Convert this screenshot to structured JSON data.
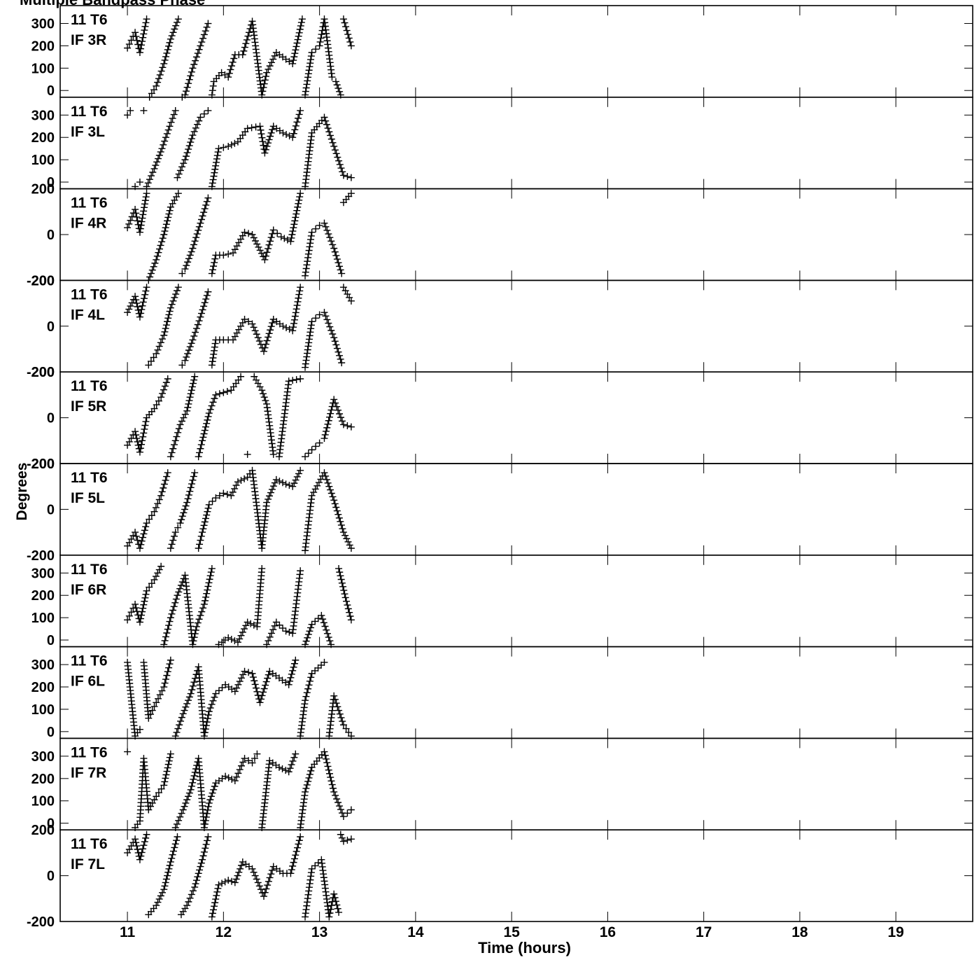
{
  "page_title": "Multiple Bandpass Phase",
  "chart_data": {
    "type": "scatter",
    "title": "",
    "xlabel": "Time (hours)",
    "ylabel": "Degrees",
    "xlim": [
      10.3,
      19.8
    ],
    "x_ticks": [
      11,
      12,
      13,
      14,
      15,
      16,
      17,
      18,
      19
    ],
    "marker": "+",
    "marker_color": "#000000",
    "grid": false,
    "panels": [
      {
        "line1": "11 T6",
        "line2": "IF 3R",
        "ylim": [
          -30,
          380
        ],
        "y_ticks": [
          0,
          100,
          200,
          300
        ],
        "x": [
          11.0,
          11.08,
          11.13,
          11.2,
          11.23,
          11.3,
          11.38,
          11.45,
          11.53,
          11.57,
          11.6,
          11.68,
          11.76,
          11.84,
          11.88,
          11.9,
          11.98,
          12.05,
          12.12,
          12.2,
          12.3,
          12.4,
          12.45,
          12.55,
          12.65,
          12.72,
          12.82,
          12.85,
          12.92,
          13.0,
          13.05,
          13.13,
          13.17,
          13.22,
          13.25,
          13.33
        ],
        "y": [
          190,
          260,
          170,
          320,
          -30,
          20,
          120,
          230,
          320,
          -30,
          -20,
          100,
          200,
          300,
          -20,
          40,
          80,
          60,
          160,
          160,
          310,
          -20,
          80,
          170,
          140,
          120,
          320,
          -20,
          170,
          200,
          320,
          60,
          40,
          -20,
          320,
          200
        ]
      },
      {
        "line1": "11 T6",
        "line2": "IF 3L",
        "ylim": [
          -30,
          380
        ],
        "y_ticks": [
          0,
          100,
          200,
          300
        ],
        "x": [
          11.0,
          11.03,
          11.08,
          11.13,
          11.17,
          11.2,
          11.28,
          11.36,
          11.44,
          11.5,
          11.52,
          11.6,
          11.68,
          11.76,
          11.84,
          11.88,
          11.95,
          12.05,
          12.15,
          12.25,
          12.38,
          12.43,
          12.52,
          12.62,
          12.72,
          12.8,
          12.85,
          12.92,
          13.05,
          13.15,
          13.25,
          13.33
        ],
        "y": [
          300,
          320,
          -20,
          0,
          320,
          -20,
          60,
          150,
          250,
          320,
          20,
          100,
          210,
          290,
          320,
          -20,
          150,
          160,
          180,
          240,
          250,
          130,
          250,
          220,
          200,
          320,
          -20,
          220,
          290,
          160,
          30,
          20
        ]
      },
      {
        "line1": "11 T6",
        "line2": "IF 4R",
        "ylim": [
          -200,
          200
        ],
        "y_ticks": [
          -200,
          0,
          200
        ],
        "x": [
          11.0,
          11.08,
          11.13,
          11.2,
          11.22,
          11.3,
          11.38,
          11.45,
          11.53,
          11.57,
          11.6,
          11.68,
          11.76,
          11.84,
          11.88,
          11.92,
          12.0,
          12.1,
          12.22,
          12.3,
          12.43,
          12.52,
          12.6,
          12.7,
          12.8,
          12.85,
          12.92,
          13.0,
          13.05,
          13.15,
          13.23,
          13.25,
          13.33
        ],
        "y": [
          30,
          110,
          10,
          180,
          -200,
          -110,
          0,
          120,
          180,
          -170,
          -150,
          -60,
          50,
          160,
          -170,
          -90,
          -90,
          -80,
          10,
          0,
          -110,
          20,
          -10,
          -30,
          180,
          -180,
          10,
          40,
          50,
          -60,
          -170,
          140,
          180
        ]
      },
      {
        "line1": "11 T6",
        "line2": "IF 4L",
        "ylim": [
          -200,
          200
        ],
        "y_ticks": [
          -200,
          0,
          200
        ],
        "x": [
          11.0,
          11.08,
          11.13,
          11.2,
          11.22,
          11.3,
          11.38,
          11.45,
          11.53,
          11.57,
          11.6,
          11.68,
          11.76,
          11.84,
          11.88,
          11.92,
          12.0,
          12.1,
          12.22,
          12.3,
          12.42,
          12.52,
          12.62,
          12.72,
          12.8,
          12.85,
          12.92,
          13.0,
          13.05,
          13.15,
          13.23,
          13.25,
          13.33
        ],
        "y": [
          60,
          130,
          40,
          170,
          -170,
          -120,
          -40,
          80,
          170,
          -170,
          -150,
          -60,
          40,
          150,
          -170,
          -60,
          -60,
          -60,
          30,
          10,
          -110,
          30,
          0,
          -20,
          170,
          -180,
          20,
          50,
          60,
          -50,
          -160,
          170,
          110
        ]
      },
      {
        "line1": "11 T6",
        "line2": "IF 5R",
        "ylim": [
          -200,
          200
        ],
        "y_ticks": [
          -200,
          0,
          200
        ],
        "x": [
          11.0,
          11.08,
          11.13,
          11.2,
          11.28,
          11.35,
          11.42,
          11.45,
          11.5,
          11.55,
          11.62,
          11.7,
          11.74,
          11.78,
          11.85,
          11.92,
          12.0,
          12.08,
          12.18,
          12.25,
          12.32,
          12.4,
          12.45,
          12.52,
          12.58,
          12.68,
          12.8,
          12.85,
          12.92,
          13.0,
          13.05,
          13.15,
          13.25,
          13.33
        ],
        "y": [
          -120,
          -60,
          -150,
          0,
          40,
          90,
          170,
          -170,
          -100,
          -30,
          30,
          180,
          -170,
          -100,
          20,
          100,
          110,
          120,
          180,
          -160,
          180,
          120,
          60,
          -160,
          -170,
          160,
          170,
          -170,
          -140,
          -110,
          -90,
          80,
          -30,
          -40
        ]
      },
      {
        "line1": "11 T6",
        "line2": "IF 5L",
        "ylim": [
          -200,
          200
        ],
        "y_ticks": [
          -200,
          0,
          200
        ],
        "x": [
          11.0,
          11.08,
          11.13,
          11.2,
          11.28,
          11.35,
          11.42,
          11.45,
          11.5,
          11.55,
          11.62,
          11.7,
          11.74,
          11.78,
          11.85,
          11.92,
          12.0,
          12.08,
          12.15,
          12.25,
          12.3,
          12.4,
          12.45,
          12.55,
          12.65,
          12.72,
          12.8,
          12.85,
          12.92,
          13.05,
          13.15,
          13.25,
          13.33
        ],
        "y": [
          -160,
          -100,
          -170,
          -60,
          -10,
          60,
          160,
          -170,
          -100,
          -60,
          30,
          160,
          -170,
          -100,
          20,
          50,
          70,
          60,
          120,
          140,
          170,
          -170,
          30,
          130,
          110,
          100,
          170,
          -180,
          60,
          160,
          40,
          -100,
          -170
        ]
      },
      {
        "line1": "11 T6",
        "line2": "IF 6R",
        "ylim": [
          -30,
          380
        ],
        "y_ticks": [
          0,
          100,
          200,
          300
        ],
        "x": [
          11.0,
          11.08,
          11.13,
          11.2,
          11.28,
          11.35,
          11.38,
          11.45,
          11.52,
          11.6,
          11.68,
          11.72,
          11.8,
          11.88,
          11.95,
          12.05,
          12.15,
          12.25,
          12.35,
          12.4,
          12.45,
          12.55,
          12.65,
          12.72,
          12.8,
          12.85,
          12.92,
          13.02,
          13.12,
          13.2,
          13.27,
          13.33
        ],
        "y": [
          90,
          160,
          80,
          220,
          270,
          330,
          -20,
          100,
          200,
          290,
          -20,
          60,
          160,
          320,
          -20,
          10,
          -10,
          80,
          60,
          320,
          -20,
          80,
          40,
          30,
          310,
          -20,
          70,
          110,
          -20,
          320,
          190,
          90
        ]
      },
      {
        "line1": "11 T6",
        "line2": "IF 6L",
        "ylim": [
          -30,
          380
        ],
        "y_ticks": [
          0,
          100,
          200,
          300
        ],
        "x": [
          11.0,
          11.08,
          11.13,
          11.17,
          11.22,
          11.3,
          11.38,
          11.45,
          11.5,
          11.58,
          11.66,
          11.74,
          11.8,
          11.85,
          11.92,
          12.02,
          12.12,
          12.22,
          12.3,
          12.38,
          12.48,
          12.58,
          12.68,
          12.75,
          12.8,
          12.85,
          12.92,
          13.05,
          13.1,
          13.15,
          13.25,
          13.33
        ],
        "y": [
          310,
          -20,
          10,
          310,
          60,
          130,
          200,
          320,
          -20,
          80,
          170,
          290,
          -20,
          90,
          170,
          210,
          180,
          270,
          260,
          130,
          270,
          240,
          210,
          320,
          -20,
          140,
          260,
          310,
          -20,
          160,
          30,
          -20
        ]
      },
      {
        "line1": "11 T6",
        "line2": "IF 7R",
        "ylim": [
          -30,
          380
        ],
        "y_ticks": [
          0,
          100,
          200,
          300
        ],
        "x": [
          11.0,
          11.08,
          11.13,
          11.17,
          11.22,
          11.3,
          11.38,
          11.45,
          11.5,
          11.58,
          11.66,
          11.74,
          11.8,
          11.85,
          11.92,
          12.02,
          12.12,
          12.22,
          12.3,
          12.35,
          12.4,
          12.48,
          12.58,
          12.68,
          12.75,
          12.8,
          12.85,
          12.92,
          13.05,
          13.15,
          13.25,
          13.33
        ],
        "y": [
          320,
          -20,
          10,
          290,
          60,
          120,
          170,
          310,
          -20,
          60,
          150,
          290,
          -20,
          90,
          180,
          210,
          190,
          290,
          270,
          310,
          -20,
          280,
          250,
          230,
          310,
          -20,
          140,
          250,
          320,
          140,
          30,
          60
        ]
      },
      {
        "line1": "11 T6",
        "line2": "IF 7L",
        "ylim": [
          -200,
          200
        ],
        "y_ticks": [
          -200,
          0,
          200
        ],
        "x": [
          11.0,
          11.08,
          11.13,
          11.2,
          11.22,
          11.3,
          11.38,
          11.45,
          11.52,
          11.56,
          11.62,
          11.7,
          11.78,
          11.84,
          11.88,
          11.95,
          12.05,
          12.12,
          12.2,
          12.3,
          12.42,
          12.52,
          12.62,
          12.7,
          12.8,
          12.85,
          12.92,
          13.02,
          13.1,
          13.15,
          13.2,
          13.22,
          13.25,
          13.33
        ],
        "y": [
          100,
          160,
          70,
          180,
          -170,
          -130,
          -60,
          60,
          170,
          -170,
          -130,
          -50,
          70,
          170,
          -180,
          -40,
          -20,
          -30,
          60,
          30,
          -90,
          40,
          10,
          10,
          170,
          -180,
          30,
          70,
          -180,
          -80,
          -160,
          180,
          150,
          160
        ]
      }
    ]
  }
}
